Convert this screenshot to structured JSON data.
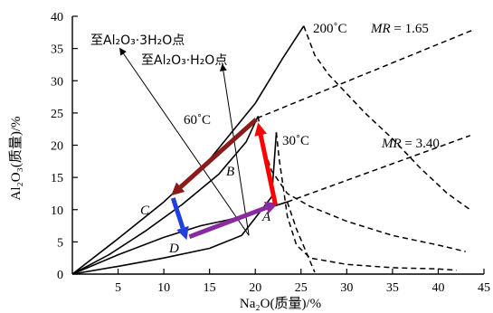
{
  "chart_data": {
    "type": "line",
    "xlabel": "Na₂O(质量)/%",
    "ylabel": "Al₂O₃(质量)/%",
    "xlim": [
      0,
      45
    ],
    "ylim": [
      0,
      40
    ],
    "x_ticks": [
      "5",
      "10",
      "15",
      "20",
      "25",
      "30",
      "35",
      "40",
      "45"
    ],
    "y_ticks": [
      "0",
      "5",
      "10",
      "15",
      "20",
      "25",
      "30",
      "35",
      "40"
    ],
    "series": [
      {
        "style": "solid",
        "x": [
          0,
          5,
          10,
          15,
          20,
          23,
          25.3
        ],
        "y": [
          0,
          5.5,
          11.2,
          17.8,
          26.5,
          33.5,
          38.5
        ]
      },
      {
        "style": "dashed",
        "x": [
          25.3,
          26.5,
          28,
          30,
          32,
          35,
          38,
          41,
          43.5
        ],
        "y": [
          38.5,
          34,
          31,
          28,
          25,
          21,
          16.5,
          12.5,
          10
        ]
      },
      {
        "style": "solid",
        "x": [
          0,
          4,
          8,
          12,
          16,
          19,
          20.3
        ],
        "y": [
          0,
          3,
          6.7,
          10.8,
          15.5,
          20.5,
          24.5
        ]
      },
      {
        "style": "solid",
        "x": [
          0,
          5,
          10,
          15,
          18.5,
          21.8,
          22.3
        ],
        "y": [
          0,
          1.2,
          2.5,
          4,
          6,
          12,
          22
        ]
      },
      {
        "style": "solid",
        "x": [
          0,
          5,
          10,
          14,
          17,
          19.5,
          21.5,
          23.5
        ],
        "y": [
          0,
          3,
          5.7,
          7.5,
          8.4,
          9.3,
          10.3,
          11.2
        ]
      },
      {
        "style": "dashed",
        "x": [
          20.3,
          20.8,
          21.8,
          23.5,
          26,
          30,
          35,
          40,
          43
        ],
        "y": [
          24.5,
          20,
          16,
          12.5,
          10.5,
          8.2,
          6,
          4.5,
          3.5
        ]
      },
      {
        "style": "dashed",
        "x": [
          22.3,
          22.6,
          23,
          23.5,
          24.5,
          26,
          30,
          35,
          40,
          42
        ],
        "y": [
          22,
          18,
          14,
          9,
          4.5,
          2.5,
          1.5,
          1,
          0.8,
          0.6
        ]
      },
      {
        "style": "dashed",
        "x": [
          23.5,
          24.5,
          26.5
        ],
        "y": [
          11.2,
          7,
          0.3
        ]
      },
      {
        "style": "dashed",
        "x": [
          20.2,
          44
        ],
        "y": [
          24.2,
          38
        ]
      },
      {
        "style": "dashed",
        "x": [
          23.5,
          43.5
        ],
        "y": [
          11.2,
          21.5
        ]
      }
    ],
    "thin_arrows": [
      {
        "from": [
          19.3,
          6
        ],
        "to": [
          5.2,
          35
        ]
      },
      {
        "from": [
          19.3,
          6
        ],
        "to": [
          16.4,
          32.5
        ]
      }
    ],
    "process_arrows": [
      {
        "from": [
          20.1,
          24
        ],
        "to": [
          10.8,
          12.2
        ],
        "color": "#8b1a1a"
      },
      {
        "from": [
          11,
          11.8
        ],
        "to": [
          12.5,
          5.3
        ],
        "color": "#1f3fe0"
      },
      {
        "from": [
          12.8,
          5.8
        ],
        "to": [
          22.5,
          11
        ],
        "color": "#8a2aa0"
      },
      {
        "from": [
          22.2,
          10.8
        ],
        "to": [
          20.3,
          23.5
        ],
        "color": "#ff0000"
      }
    ],
    "annotations": {
      "t200": "200˚C",
      "t60": "60˚C",
      "t30": "30˚C",
      "to_trihydrate": "至Al₂O₃·3H₂O点",
      "to_monohydrate": "至Al₂O₃·H₂O点",
      "mr_high_italic": "MR",
      "mr_high_value": " = 1.65",
      "mr_low_italic": "MR",
      "mr_low_value": " = 3.40",
      "point_A": "A",
      "point_B": "B",
      "point_C": "C",
      "point_D": "D"
    }
  }
}
